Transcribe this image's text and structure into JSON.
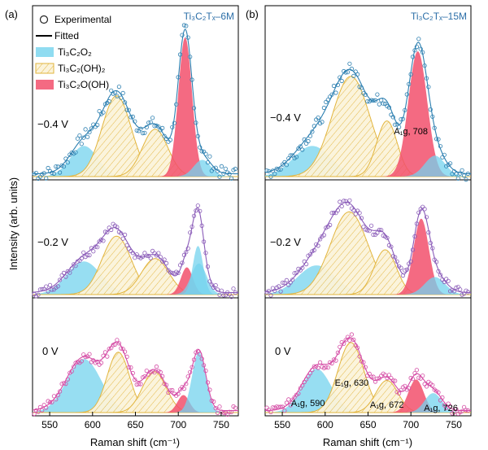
{
  "figure": {
    "ylabel": "Intensity (arb. units)",
    "xlabel": "Raman shift (cm⁻¹)",
    "legend": {
      "experimental": "Experimental",
      "fitted": "Fitted",
      "ti3c2o2": "Ti₃C₂O₂",
      "ti3c2oh2": "Ti₃C₂(OH)₂",
      "ti3c2ooh": "Ti₃C₂O(OH)"
    }
  },
  "colors": {
    "o2": "#74D3EE",
    "oh2": "#E2B53E",
    "oh2_fill": "#FBF3DA",
    "ooh": "#F2506C",
    "exp_top": "#2C7FB0",
    "exp_mid": "#8A5BB8",
    "exp_bot": "#D44AA4",
    "axis": "#000000"
  },
  "chart_data": [
    {
      "type": "line",
      "panel_label": "(a)",
      "title": "Ti₃C₂Tₓ–6M",
      "xlabel": "Raman shift (cm⁻¹)",
      "ylabel": "Intensity (arb. units)",
      "xlim": [
        530,
        770
      ],
      "xticks": [
        550,
        600,
        650,
        700,
        750
      ],
      "legend_position": "top-left",
      "stacks": [
        {
          "label": "−0.4 V",
          "exp_color": "exp_top",
          "peaks": [
            {
              "component": "Ti3C2O2",
              "center": 590,
              "height": 0.22,
              "width": 16
            },
            {
              "component": "Ti3C2(OH)2",
              "center": 628,
              "height": 0.58,
              "width": 17
            },
            {
              "component": "Ti3C2(OH)2",
              "center": 673,
              "height": 0.34,
              "width": 15
            },
            {
              "component": "Ti3C2O(OH)",
              "center": 708,
              "height": 1.0,
              "width": 8
            },
            {
              "component": "Ti3C2O2",
              "center": 728,
              "height": 0.12,
              "width": 10
            }
          ]
        },
        {
          "label": "−0.2 V",
          "exp_color": "exp_mid",
          "peaks": [
            {
              "component": "Ti3C2O2",
              "center": 590,
              "height": 0.34,
              "width": 20
            },
            {
              "component": "Ti3C2(OH)2",
              "center": 628,
              "height": 0.6,
              "width": 17
            },
            {
              "component": "Ti3C2(OH)2",
              "center": 673,
              "height": 0.37,
              "width": 16
            },
            {
              "component": "Ti3C2O(OH)",
              "center": 710,
              "height": 0.28,
              "width": 7
            },
            {
              "component": "Ti3C2O2",
              "center": 724,
              "height": 0.32,
              "width": 9
            },
            {
              "component": "Ti3C2O2",
              "center": 723,
              "height": 0.5,
              "width": 6
            }
          ]
        },
        {
          "label": "0 V",
          "exp_color": "exp_bot",
          "peaks": [
            {
              "component": "Ti3C2O2",
              "center": 590,
              "height": 0.55,
              "width": 20
            },
            {
              "component": "Ti3C2(OH)2",
              "center": 630,
              "height": 0.62,
              "width": 13
            },
            {
              "component": "Ti3C2(OH)2",
              "center": 672,
              "height": 0.42,
              "width": 14
            },
            {
              "component": "Ti3C2O(OH)",
              "center": 706,
              "height": 0.18,
              "width": 7
            },
            {
              "component": "Ti3C2O2",
              "center": 724,
              "height": 0.62,
              "width": 8
            }
          ]
        }
      ],
      "annotations": []
    },
    {
      "type": "line",
      "panel_label": "(b)",
      "title": "Ti₃C₂Tₓ–15M",
      "xlabel": "Raman shift (cm⁻¹)",
      "xlim": [
        530,
        770
      ],
      "xticks": [
        550,
        600,
        650,
        700,
        750
      ],
      "stacks": [
        {
          "label": "−0.4 V",
          "exp_color": "exp_top",
          "peaks": [
            {
              "component": "Ti3C2O2",
              "center": 585,
              "height": 0.22,
              "width": 22
            },
            {
              "component": "Ti3C2(OH)2",
              "center": 630,
              "height": 0.72,
              "width": 22
            },
            {
              "component": "Ti3C2(OH)2",
              "center": 672,
              "height": 0.4,
              "width": 12
            },
            {
              "component": "Ti3C2O(OH)",
              "center": 708,
              "height": 0.9,
              "width": 11
            },
            {
              "component": "Ti3C2O2",
              "center": 728,
              "height": 0.15,
              "width": 12
            }
          ]
        },
        {
          "label": "−0.2 V",
          "exp_color": "exp_mid",
          "peaks": [
            {
              "component": "Ti3C2O2",
              "center": 590,
              "height": 0.3,
              "width": 22
            },
            {
              "component": "Ti3C2(OH)2",
              "center": 628,
              "height": 0.85,
              "width": 22
            },
            {
              "component": "Ti3C2(OH)2",
              "center": 670,
              "height": 0.46,
              "width": 13
            },
            {
              "component": "Ti3C2O(OH)",
              "center": 712,
              "height": 0.78,
              "width": 9
            },
            {
              "component": "Ti3C2O2",
              "center": 728,
              "height": 0.18,
              "width": 12
            }
          ]
        },
        {
          "label": "0 V",
          "exp_color": "exp_bot",
          "peaks": [
            {
              "component": "Ti3C2O2",
              "center": 590,
              "height": 0.45,
              "width": 17
            },
            {
              "component": "Ti3C2(OH)2",
              "center": 630,
              "height": 0.72,
              "width": 15
            },
            {
              "component": "Ti3C2(OH)2",
              "center": 672,
              "height": 0.33,
              "width": 13
            },
            {
              "component": "Ti3C2O(OH)",
              "center": 706,
              "height": 0.34,
              "width": 9
            },
            {
              "component": "Ti3C2O2",
              "center": 726,
              "height": 0.2,
              "width": 10
            }
          ]
        }
      ],
      "annotations": [
        {
          "text": "A₁g, 708",
          "stack": 0,
          "x": 700
        },
        {
          "text": "A₁g, 590",
          "stack": 2,
          "x": 580
        },
        {
          "text": "E₁g, 630",
          "stack": 2,
          "x": 631
        },
        {
          "text": "A₁g, 672",
          "stack": 2,
          "x": 672
        },
        {
          "text": "A₁g, 726",
          "stack": 2,
          "x": 735
        }
      ]
    }
  ]
}
